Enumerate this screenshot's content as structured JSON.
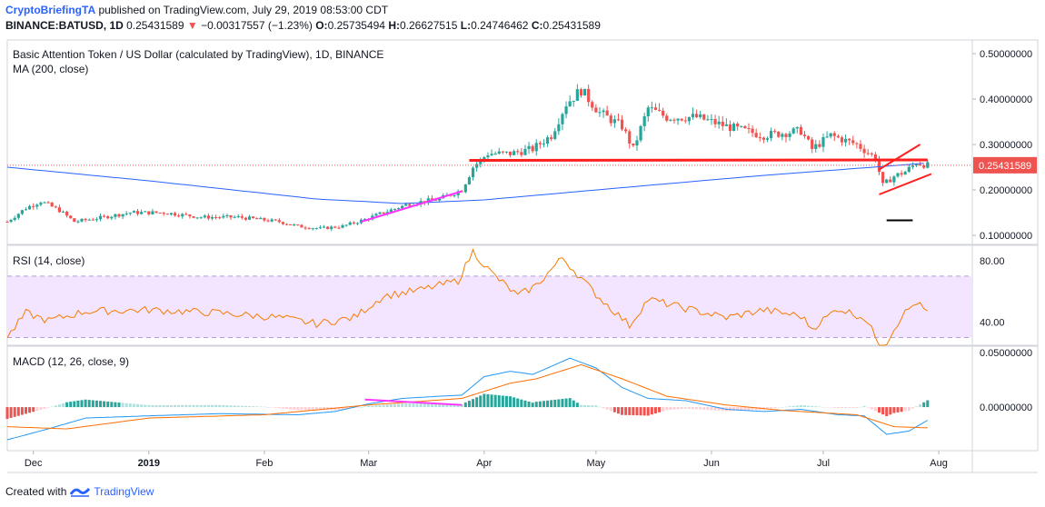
{
  "header": {
    "author": "CryptoBriefingTA",
    "published": "published on TradingView.com, July 29, 2019 08:53:00 CDT",
    "symbol": "BINANCE:BATUSD, 1D",
    "last": "0.25431589",
    "change": "−0.00317557 (−1.23%)",
    "o_label": "O:",
    "o": "0.25735494",
    "h_label": "H:",
    "h": "0.26627515",
    "l_label": "L:",
    "l": "0.24746462",
    "c_label": "C:",
    "c": "0.25431589"
  },
  "footer": {
    "created_with": "Created with",
    "brand": "TradingView"
  },
  "colors": {
    "up": "#26a69a",
    "down": "#ef5350",
    "ma": "#2962ff",
    "rsi": "#f57c00",
    "macd": "#2196f3",
    "signal": "#ff6d00",
    "trend": "#ff1f1f",
    "magenta": "#ff33ff",
    "rsiBand": "#f3e5ff"
  },
  "chart_data": [
    {
      "type": "candlestick",
      "title": "Basic Attention Token / US Dollar (calculated by TradingView), 1D, BINANCE",
      "indicator": "MA (200, close)",
      "y_ticks": [
        "0.50000000",
        "0.40000000",
        "0.30000000",
        "0.20000000",
        "0.10000000"
      ],
      "ylim": [
        0.08,
        0.53
      ],
      "last_price_label": "0.25431589",
      "x_ticks": [
        "Dec",
        "2019",
        "Feb",
        "Mar",
        "Apr",
        "May",
        "Jun",
        "Jul",
        "Aug"
      ],
      "x_tick_dates": [
        "2018-12-01",
        "2019-01-01",
        "2019-02-01",
        "2019-03-01",
        "2019-04-01",
        "2019-05-01",
        "2019-06-01",
        "2019-07-01",
        "2019-08-01"
      ],
      "x_range": [
        "2018-11-24",
        "2019-08-10"
      ],
      "price_anchors": [
        [
          "2018-11-24",
          0.13
        ],
        [
          "2018-11-29",
          0.16
        ],
        [
          "2018-12-03",
          0.175
        ],
        [
          "2018-12-08",
          0.155
        ],
        [
          "2018-12-12",
          0.13
        ],
        [
          "2018-12-20",
          0.14
        ],
        [
          "2018-12-27",
          0.15
        ],
        [
          "2019-01-05",
          0.15
        ],
        [
          "2019-01-15",
          0.14
        ],
        [
          "2019-01-25",
          0.14
        ],
        [
          "2019-02-05",
          0.13
        ],
        [
          "2019-02-10",
          0.12
        ],
        [
          "2019-02-16",
          0.115
        ],
        [
          "2019-02-22",
          0.12
        ],
        [
          "2019-02-28",
          0.135
        ],
        [
          "2019-03-05",
          0.15
        ],
        [
          "2019-03-12",
          0.17
        ],
        [
          "2019-03-20",
          0.18
        ],
        [
          "2019-03-26",
          0.2
        ],
        [
          "2019-03-29",
          0.25
        ],
        [
          "2019-04-02",
          0.28
        ],
        [
          "2019-04-08",
          0.28
        ],
        [
          "2019-04-14",
          0.29
        ],
        [
          "2019-04-19",
          0.32
        ],
        [
          "2019-04-23",
          0.39
        ],
        [
          "2019-04-27",
          0.42
        ],
        [
          "2019-05-02",
          0.37
        ],
        [
          "2019-05-08",
          0.34
        ],
        [
          "2019-05-11",
          0.29
        ],
        [
          "2019-05-15",
          0.38
        ],
        [
          "2019-05-20",
          0.36
        ],
        [
          "2019-05-28",
          0.36
        ],
        [
          "2019-06-05",
          0.34
        ],
        [
          "2019-06-15",
          0.32
        ],
        [
          "2019-06-25",
          0.33
        ],
        [
          "2019-06-28",
          0.29
        ],
        [
          "2019-07-03",
          0.32
        ],
        [
          "2019-07-10",
          0.3
        ],
        [
          "2019-07-15",
          0.27
        ],
        [
          "2019-07-17",
          0.21
        ],
        [
          "2019-07-20",
          0.23
        ],
        [
          "2019-07-23",
          0.24
        ],
        [
          "2019-07-26",
          0.26
        ],
        [
          "2019-07-29",
          0.254
        ]
      ],
      "ma200": [
        [
          "2018-11-24",
          0.25
        ],
        [
          "2019-01-01",
          0.22
        ],
        [
          "2019-02-15",
          0.18
        ],
        [
          "2019-03-10",
          0.17
        ],
        [
          "2019-04-01",
          0.178
        ],
        [
          "2019-05-15",
          0.21
        ],
        [
          "2019-06-15",
          0.232
        ],
        [
          "2019-07-29",
          0.259
        ]
      ],
      "drawings": [
        {
          "name": "resistance-line",
          "color": "#ff1f1f",
          "from": [
            "2019-03-28",
            0.265
          ],
          "to": [
            "2019-07-29",
            0.266
          ]
        },
        {
          "name": "channel-upper",
          "color": "#ff1f1f",
          "from": [
            "2019-07-16",
            0.245
          ],
          "to": [
            "2019-07-27",
            0.3
          ]
        },
        {
          "name": "channel-lower",
          "color": "#ff1f1f",
          "from": [
            "2019-07-16",
            0.19
          ],
          "to": [
            "2019-07-30",
            0.235
          ]
        },
        {
          "name": "magenta-trend",
          "color": "#ff33ff",
          "from": [
            "2019-02-27",
            0.13
          ],
          "to": [
            "2019-03-26",
            0.197
          ]
        },
        {
          "name": "black-marker",
          "color": "#000000",
          "from": [
            "2019-07-18",
            0.133
          ],
          "to": [
            "2019-07-25",
            0.133
          ]
        }
      ]
    },
    {
      "type": "line",
      "title": "RSI (14, close)",
      "y_ticks": [
        "80.00",
        "40.00"
      ],
      "ylim": [
        25,
        90
      ],
      "band": [
        30,
        70
      ],
      "series": [
        {
          "values": [
            [
              "2018-11-24",
              30
            ],
            [
              "2018-11-29",
              46
            ],
            [
              "2018-12-05",
              41
            ],
            [
              "2018-12-15",
              47
            ],
            [
              "2019-01-01",
              48
            ],
            [
              "2019-01-20",
              46
            ],
            [
              "2019-02-05",
              43
            ],
            [
              "2019-02-15",
              39
            ],
            [
              "2019-02-25",
              43
            ],
            [
              "2019-03-05",
              57
            ],
            [
              "2019-03-15",
              61
            ],
            [
              "2019-03-25",
              67
            ],
            [
              "2019-03-29",
              86
            ],
            [
              "2019-04-03",
              72
            ],
            [
              "2019-04-10",
              57
            ],
            [
              "2019-04-15",
              64
            ],
            [
              "2019-04-22",
              82
            ],
            [
              "2019-05-01",
              58
            ],
            [
              "2019-05-10",
              38
            ],
            [
              "2019-05-15",
              55
            ],
            [
              "2019-05-25",
              49
            ],
            [
              "2019-06-05",
              43
            ],
            [
              "2019-06-15",
              48
            ],
            [
              "2019-06-25",
              44
            ],
            [
              "2019-06-28",
              36
            ],
            [
              "2019-07-05",
              49
            ],
            [
              "2019-07-12",
              43
            ],
            [
              "2019-07-17",
              23
            ],
            [
              "2019-07-22",
              44
            ],
            [
              "2019-07-26",
              53
            ],
            [
              "2019-07-29",
              46
            ]
          ]
        }
      ]
    },
    {
      "type": "line",
      "title": "MACD (12, 26, close, 9)",
      "y_ticks": [
        "0.05000000",
        "0.00000000"
      ],
      "ylim": [
        -0.04,
        0.056
      ],
      "series": [
        {
          "values": [
            [
              "2018-11-24",
              -0.03
            ],
            [
              "2018-12-05",
              -0.02
            ],
            [
              "2018-12-15",
              -0.01
            ],
            [
              "2019-01-01",
              -0.008
            ],
            [
              "2019-01-20",
              -0.006
            ],
            [
              "2019-02-10",
              -0.007
            ],
            [
              "2019-02-20",
              -0.004
            ],
            [
              "2019-03-01",
              0.003
            ],
            [
              "2019-03-10",
              0.008
            ],
            [
              "2019-03-20",
              0.01
            ],
            [
              "2019-03-26",
              0.011
            ],
            [
              "2019-04-01",
              0.028
            ],
            [
              "2019-04-08",
              0.033
            ],
            [
              "2019-04-14",
              0.03
            ],
            [
              "2019-04-24",
              0.045
            ],
            [
              "2019-05-01",
              0.036
            ],
            [
              "2019-05-08",
              0.018
            ],
            [
              "2019-05-15",
              0.008
            ],
            [
              "2019-05-25",
              0.006
            ],
            [
              "2019-06-05",
              -0.002
            ],
            [
              "2019-06-15",
              -0.004
            ],
            [
              "2019-06-25",
              -0.002
            ],
            [
              "2019-07-05",
              -0.007
            ],
            [
              "2019-07-12",
              -0.008
            ],
            [
              "2019-07-18",
              -0.025
            ],
            [
              "2019-07-24",
              -0.022
            ],
            [
              "2019-07-29",
              -0.012
            ]
          ]
        },
        {
          "values": [
            [
              "2018-11-24",
              -0.018
            ],
            [
              "2018-12-10",
              -0.02
            ],
            [
              "2019-01-01",
              -0.01
            ],
            [
              "2019-02-01",
              -0.007
            ],
            [
              "2019-03-01",
              0.002
            ],
            [
              "2019-03-26",
              0.008
            ],
            [
              "2019-04-08",
              0.022
            ],
            [
              "2019-04-15",
              0.026
            ],
            [
              "2019-04-27",
              0.039
            ],
            [
              "2019-05-08",
              0.026
            ],
            [
              "2019-05-20",
              0.01
            ],
            [
              "2019-06-05",
              0.002
            ],
            [
              "2019-06-20",
              -0.003
            ],
            [
              "2019-07-10",
              -0.007
            ],
            [
              "2019-07-20",
              -0.018
            ],
            [
              "2019-07-29",
              -0.019
            ]
          ]
        }
      ],
      "drawings": [
        {
          "name": "macd-magenta-line",
          "color": "#ff33ff",
          "from": [
            "2019-02-28",
            0.007
          ],
          "to": [
            "2019-03-26",
            0.002
          ]
        }
      ]
    }
  ]
}
